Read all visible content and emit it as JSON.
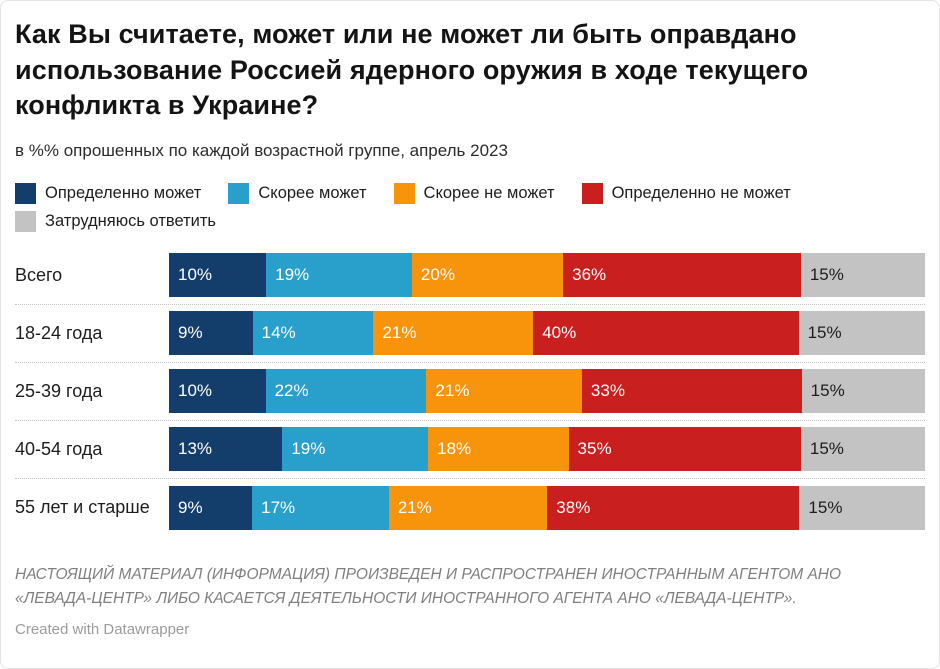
{
  "title": "Как Вы считаете, может или не может ли быть оправдано использование Россией ядерного оружия в ходе текущего конфликта в Украине?",
  "subtitle": "в %% опрошенных по каждой возрастной группе, апрель 2023",
  "chart_data": {
    "type": "bar",
    "stacked": true,
    "orientation": "horizontal",
    "value_suffix": "%",
    "categories": [
      "Всего",
      "18-24 года",
      "25-39 года",
      "40-54 года",
      "55 лет и старше"
    ],
    "series": [
      {
        "name": "Определенно может",
        "color": "#133e6b",
        "label_color": "#ffffff",
        "values": [
          10,
          9,
          10,
          13,
          9
        ]
      },
      {
        "name": "Скорее может",
        "color": "#29a0cc",
        "label_color": "#ffffff",
        "values": [
          19,
          14,
          22,
          19,
          17
        ]
      },
      {
        "name": "Скорее не может",
        "color": "#f7940c",
        "label_color": "#ffffff",
        "values": [
          20,
          21,
          21,
          18,
          21
        ]
      },
      {
        "name": "Определенно не может",
        "color": "#c91f1f",
        "label_color": "#ffffff",
        "values": [
          36,
          40,
          33,
          35,
          38
        ]
      },
      {
        "name": "Затрудняюсь ответить",
        "color": "#c3c3c3",
        "label_color": "#1d1d1d",
        "values": [
          15,
          15,
          15,
          15,
          15
        ]
      }
    ],
    "legend_position": "top",
    "grid": false,
    "xlim": [
      0,
      100
    ]
  },
  "footer": {
    "disclaimer": "НАСТОЯЩИЙ МАТЕРИАЛ (ИНФОРМАЦИЯ) ПРОИЗВЕДЕН И РАСПРОСТРАНЕН ИНОСТРАННЫМ АГЕНТОМ АНО «ЛЕВАДА-ЦЕНТР» ЛИБО КАСАЕТСЯ ДЕЯТЕЛЬНОСТИ ИНОСТРАННОГО АГЕНТА АНО «ЛЕВАДА-ЦЕНТР».",
    "credit": "Created with Datawrapper"
  }
}
